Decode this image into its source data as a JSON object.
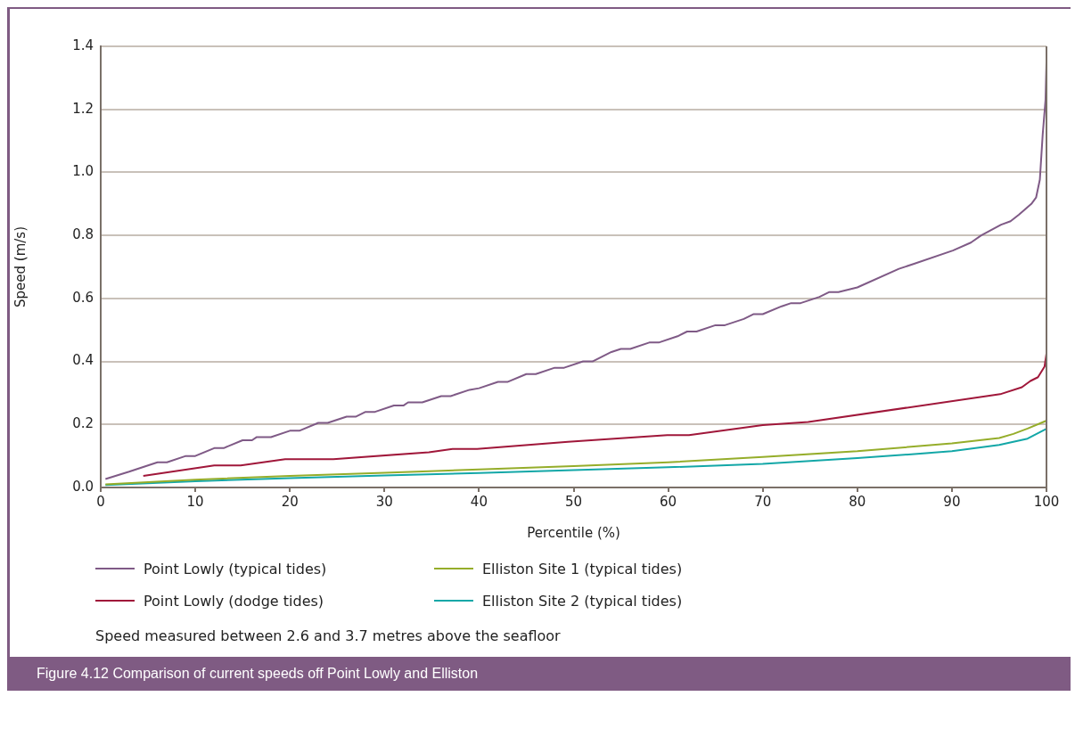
{
  "chart_data": {
    "type": "line",
    "title": "Figure 4.12  Comparison of current speeds off Point Lowly and Elliston",
    "xlabel": "Percentile (%)",
    "ylabel": "Speed (m/s)",
    "annotations": [
      "Speed measured between 2.6 and 3.7 metres above the seafloor"
    ],
    "xlim": [
      0,
      100
    ],
    "xticks": [
      0,
      10,
      20,
      30,
      40,
      50,
      60,
      70,
      80,
      90,
      100
    ],
    "ylim": [
      0,
      1.4
    ],
    "yticks": [
      {
        "value": 0,
        "label": "0.0"
      },
      {
        "value": 0.2,
        "label": "0.2"
      },
      {
        "value": 0.4,
        "label": "0.4"
      },
      {
        "value": 0.6,
        "label": "0.6"
      },
      {
        "value": 0.8,
        "label": "0.8"
      },
      {
        "value": 1,
        "label": "1.0"
      },
      {
        "value": 1.2,
        "label": "1.2"
      },
      {
        "value": 1.4,
        "label": "1.4"
      }
    ],
    "grid": "y",
    "legend": "bottom",
    "marker": "none",
    "line_style": "solid",
    "series": [
      {
        "name": "Point Lowly (typical tides)",
        "color": "#7f5a86",
        "x": [
          0.5,
          3,
          6,
          7,
          9,
          10,
          12,
          13,
          15,
          16,
          16.5,
          18,
          20,
          21,
          23,
          24,
          26,
          27,
          28,
          29,
          31,
          32,
          32.5,
          34,
          36,
          37,
          39,
          40,
          42,
          43,
          45,
          46,
          48,
          49,
          51,
          52,
          54,
          55,
          56,
          58,
          59,
          61,
          62,
          63,
          65,
          66,
          68,
          69,
          70,
          72,
          73,
          74,
          76,
          77,
          78,
          80,
          84.4,
          86,
          90.1,
          92,
          93.1,
          95.2,
          96.2,
          97.1,
          98.4,
          98.9,
          99.3,
          99.6,
          99.9,
          100
        ],
        "values": [
          0.027,
          0.05,
          0.08,
          0.08,
          0.1,
          0.1,
          0.125,
          0.125,
          0.15,
          0.15,
          0.16,
          0.16,
          0.18,
          0.18,
          0.205,
          0.205,
          0.225,
          0.225,
          0.24,
          0.24,
          0.26,
          0.26,
          0.27,
          0.27,
          0.29,
          0.29,
          0.31,
          0.315,
          0.335,
          0.335,
          0.36,
          0.36,
          0.38,
          0.38,
          0.4,
          0.4,
          0.43,
          0.44,
          0.44,
          0.46,
          0.46,
          0.48,
          0.495,
          0.495,
          0.515,
          0.515,
          0.535,
          0.55,
          0.55,
          0.575,
          0.585,
          0.585,
          0.605,
          0.62,
          0.62,
          0.635,
          0.694,
          0.71,
          0.752,
          0.777,
          0.8,
          0.834,
          0.845,
          0.866,
          0.9,
          0.92,
          0.977,
          1.12,
          1.23,
          1.35
        ]
      },
      {
        "name": "Point Lowly (dodge tides)",
        "color": "#a0173a",
        "x": [
          4.5,
          12,
          14.8,
          19.5,
          24.6,
          34.7,
          37.2,
          39.8,
          49.4,
          59.9,
          62.2,
          70,
          74.8,
          95.1,
          97.4,
          98.3,
          99.1,
          99.8,
          100
        ],
        "values": [
          0.037,
          0.07,
          0.07,
          0.09,
          0.09,
          0.112,
          0.122,
          0.122,
          0.145,
          0.166,
          0.166,
          0.198,
          0.208,
          0.296,
          0.318,
          0.338,
          0.35,
          0.384,
          0.425
        ]
      },
      {
        "name": "Elliston Site 1 (typical tides)",
        "color": "#95ad2a",
        "x": [
          0.5,
          10,
          20,
          30,
          40,
          50,
          60,
          70,
          80,
          90,
          95,
          96.5,
          98,
          100
        ],
        "values": [
          0.01,
          0.025,
          0.037,
          0.047,
          0.057,
          0.068,
          0.08,
          0.097,
          0.115,
          0.14,
          0.157,
          0.17,
          0.187,
          0.212
        ]
      },
      {
        "name": "Elliston Site 2 (typical tides)",
        "color": "#13a7a7",
        "x": [
          0.5,
          10,
          20,
          30,
          40,
          50,
          60,
          70,
          80,
          90,
          95,
          98,
          100
        ],
        "values": [
          0.008,
          0.02,
          0.03,
          0.038,
          0.046,
          0.055,
          0.064,
          0.075,
          0.093,
          0.115,
          0.135,
          0.155,
          0.186
        ]
      }
    ]
  }
}
